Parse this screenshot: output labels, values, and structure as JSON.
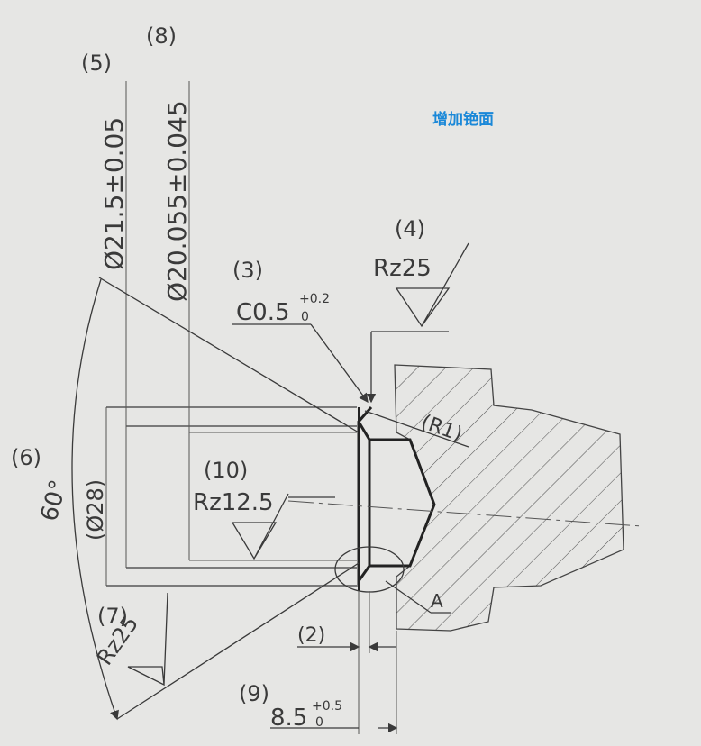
{
  "callouts": {
    "c2": "(2)",
    "c3": "(3)",
    "c4": "(4)",
    "c5": "(5)",
    "c6": "(6)",
    "c7": "(7)",
    "c8": "(8)",
    "c9": "(9)",
    "c10": "(10)"
  },
  "dimensions": {
    "dia_outer": "Ø21.5±0.05",
    "dia_inner": "Ø20.055±0.045",
    "dia_ref": "(Ø28)",
    "chamfer_main": "C0.5",
    "chamfer_tol_upper": "+0.2",
    "chamfer_tol_lower": "0",
    "radius": "(R1)",
    "angle": "60°",
    "length_main": "8.5",
    "length_tol_upper": "+0.5",
    "length_tol_lower": "0",
    "detail_label": "A"
  },
  "surface_finish": {
    "rz_top": "Rz25",
    "rz_bore": "Rz12.5",
    "rz_left": "Rz25"
  },
  "annotation": {
    "note": "增加铯面",
    "note_color": "#1a88d8"
  }
}
